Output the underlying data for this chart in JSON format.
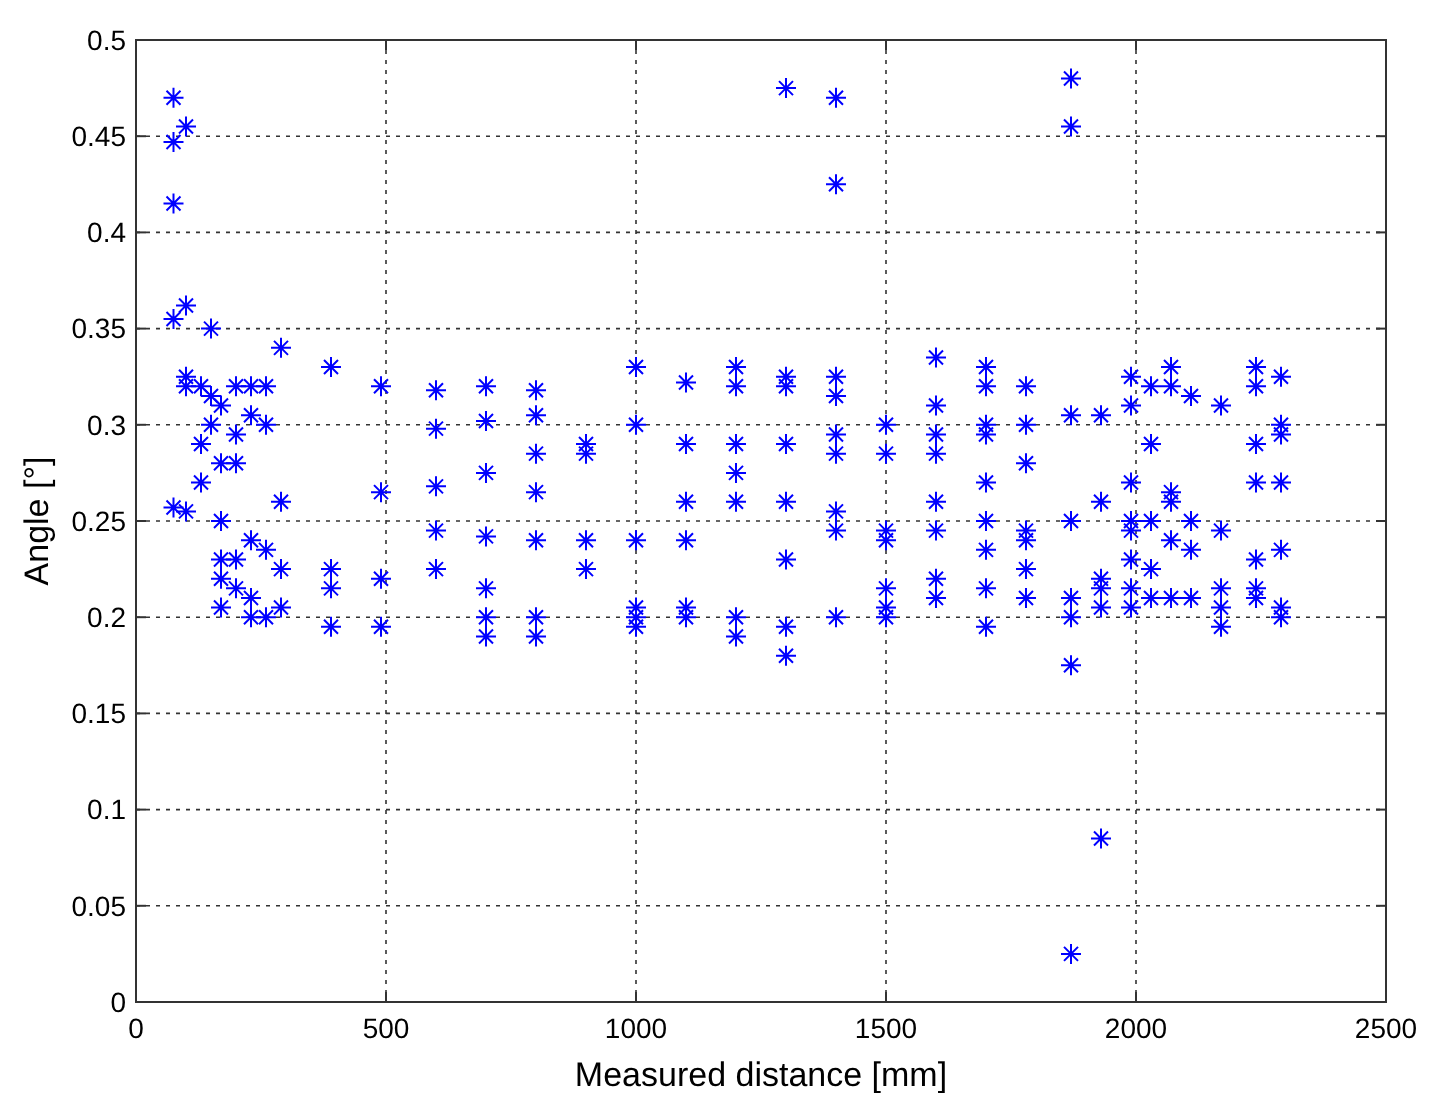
{
  "chart_data": {
    "type": "scatter",
    "xlabel": "Measured distance [mm]",
    "ylabel": "Angle [°]",
    "xlim": [
      0,
      2500
    ],
    "ylim": [
      0,
      0.5
    ],
    "xticks": [
      0,
      500,
      1000,
      1500,
      2000,
      2500
    ],
    "yticks": [
      0,
      0.05,
      0.1,
      0.15,
      0.2,
      0.25,
      0.3,
      0.35,
      0.4,
      0.45,
      0.5
    ],
    "grid": true,
    "marker": "cross",
    "series": [
      {
        "color": "#0000ff",
        "x": [
          75,
          75,
          75,
          75,
          75,
          100,
          100,
          100,
          100,
          100,
          130,
          130,
          130,
          150,
          150,
          150,
          170,
          170,
          170,
          170,
          170,
          170,
          200,
          200,
          200,
          200,
          200,
          230,
          230,
          230,
          230,
          230,
          260,
          260,
          260,
          260,
          290,
          290,
          290,
          290,
          390,
          390,
          390,
          390,
          490,
          490,
          490,
          490,
          600,
          600,
          600,
          600,
          600,
          700,
          700,
          700,
          700,
          700,
          700,
          700,
          800,
          800,
          800,
          800,
          800,
          800,
          800,
          900,
          900,
          900,
          900,
          1000,
          1000,
          1000,
          1000,
          1000,
          1000,
          1100,
          1100,
          1100,
          1100,
          1100,
          1100,
          1200,
          1200,
          1200,
          1200,
          1200,
          1200,
          1200,
          1300,
          1300,
          1300,
          1300,
          1300,
          1300,
          1300,
          1300,
          1400,
          1400,
          1400,
          1400,
          1400,
          1400,
          1400,
          1400,
          1400,
          1500,
          1500,
          1500,
          1500,
          1500,
          1500,
          1500,
          1600,
          1600,
          1600,
          1600,
          1600,
          1600,
          1600,
          1600,
          1700,
          1700,
          1700,
          1700,
          1700,
          1700,
          1700,
          1700,
          1700,
          1780,
          1780,
          1780,
          1780,
          1780,
          1780,
          1780,
          1870,
          1870,
          1870,
          1870,
          1870,
          1870,
          1870,
          1870,
          1930,
          1930,
          1930,
          1930,
          1930,
          1930,
          1990,
          1990,
          1990,
          1990,
          1990,
          1990,
          1990,
          1990,
          2030,
          2030,
          2030,
          2030,
          2030,
          2070,
          2070,
          2070,
          2070,
          2070,
          2070,
          2110,
          2110,
          2110,
          2110,
          2170,
          2170,
          2170,
          2170,
          2170,
          2240,
          2240,
          2240,
          2240,
          2240,
          2240,
          2240,
          2290,
          2290,
          2290,
          2290,
          2290,
          2290,
          2290
        ],
        "values": [
          0.47,
          0.447,
          0.415,
          0.355,
          0.257,
          0.455,
          0.362,
          0.325,
          0.32,
          0.255,
          0.32,
          0.29,
          0.27,
          0.35,
          0.3,
          0.315,
          0.31,
          0.28,
          0.25,
          0.22,
          0.205,
          0.23,
          0.32,
          0.295,
          0.28,
          0.23,
          0.215,
          0.32,
          0.305,
          0.24,
          0.21,
          0.2,
          0.32,
          0.3,
          0.235,
          0.2,
          0.34,
          0.26,
          0.225,
          0.205,
          0.33,
          0.225,
          0.215,
          0.195,
          0.32,
          0.265,
          0.22,
          0.195,
          0.318,
          0.298,
          0.268,
          0.245,
          0.225,
          0.32,
          0.302,
          0.275,
          0.242,
          0.215,
          0.2,
          0.19,
          0.318,
          0.305,
          0.285,
          0.265,
          0.24,
          0.2,
          0.19,
          0.29,
          0.285,
          0.225,
          0.24,
          0.33,
          0.3,
          0.24,
          0.205,
          0.2,
          0.195,
          0.322,
          0.29,
          0.26,
          0.24,
          0.205,
          0.2,
          0.33,
          0.32,
          0.29,
          0.275,
          0.26,
          0.2,
          0.19,
          0.475,
          0.325,
          0.32,
          0.29,
          0.26,
          0.23,
          0.195,
          0.18,
          0.47,
          0.425,
          0.325,
          0.315,
          0.295,
          0.285,
          0.255,
          0.245,
          0.2,
          0.3,
          0.285,
          0.245,
          0.24,
          0.215,
          0.205,
          0.2,
          0.335,
          0.31,
          0.295,
          0.285,
          0.26,
          0.245,
          0.22,
          0.21,
          0.33,
          0.32,
          0.3,
          0.295,
          0.27,
          0.25,
          0.235,
          0.215,
          0.195,
          0.32,
          0.3,
          0.28,
          0.245,
          0.24,
          0.225,
          0.21,
          0.48,
          0.455,
          0.305,
          0.25,
          0.21,
          0.2,
          0.175,
          0.025,
          0.305,
          0.26,
          0.22,
          0.215,
          0.205,
          0.085,
          0.325,
          0.31,
          0.27,
          0.25,
          0.245,
          0.23,
          0.215,
          0.205,
          0.32,
          0.29,
          0.25,
          0.225,
          0.21,
          0.33,
          0.32,
          0.265,
          0.26,
          0.24,
          0.21,
          0.315,
          0.25,
          0.235,
          0.21,
          0.31,
          0.245,
          0.215,
          0.205,
          0.195,
          0.33,
          0.32,
          0.29,
          0.27,
          0.23,
          0.215,
          0.21,
          0.325,
          0.3,
          0.295,
          0.27,
          0.235,
          0.205,
          0.2
        ]
      }
    ]
  }
}
